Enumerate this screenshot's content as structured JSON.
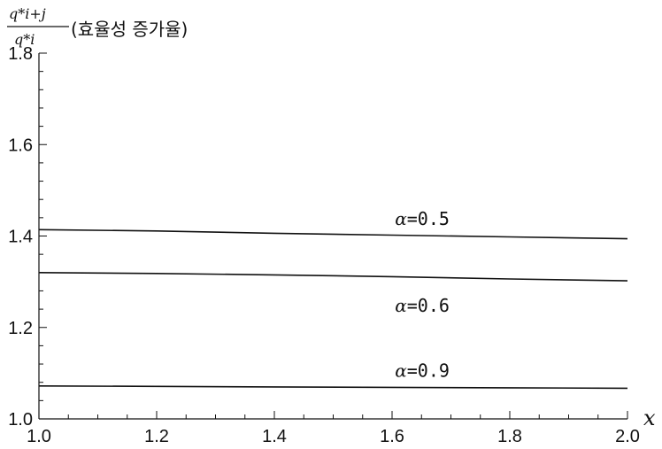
{
  "chart_data": {
    "type": "line",
    "ylabel": {
      "numerator": "q*i+j",
      "denominator": "q*i",
      "text": "(효율성 증가율)"
    },
    "xlabel": "x",
    "xlim": [
      1.0,
      2.0
    ],
    "ylim": [
      1.0,
      1.8
    ],
    "x_ticks": [
      "1.0",
      "1.2",
      "1.4",
      "1.6",
      "1.8",
      "2.0"
    ],
    "y_ticks": [
      "1.0",
      "1.2",
      "1.4",
      "1.6",
      "1.8"
    ],
    "grid": false,
    "series": [
      {
        "name": "α=0.5",
        "x": [
          1.0,
          1.2,
          1.4,
          1.6,
          1.8,
          2.0
        ],
        "y": [
          1.414,
          1.411,
          1.406,
          1.402,
          1.398,
          1.394
        ]
      },
      {
        "name": "α=0.6",
        "x": [
          1.0,
          1.2,
          1.4,
          1.6,
          1.8,
          2.0
        ],
        "y": [
          1.32,
          1.318,
          1.315,
          1.311,
          1.306,
          1.302
        ]
      },
      {
        "name": "α=0.9",
        "x": [
          1.0,
          1.2,
          1.4,
          1.6,
          1.8,
          2.0
        ],
        "y": [
          1.072,
          1.071,
          1.07,
          1.069,
          1.068,
          1.067
        ]
      }
    ],
    "annotations": [
      {
        "series": 0,
        "greek": "α",
        "value": "=0.5",
        "position": "above-right"
      },
      {
        "series": 1,
        "greek": "α",
        "value": "=0.6",
        "position": "below-right"
      },
      {
        "series": 2,
        "greek": "α",
        "value": "=0.9",
        "position": "above-right"
      }
    ]
  }
}
